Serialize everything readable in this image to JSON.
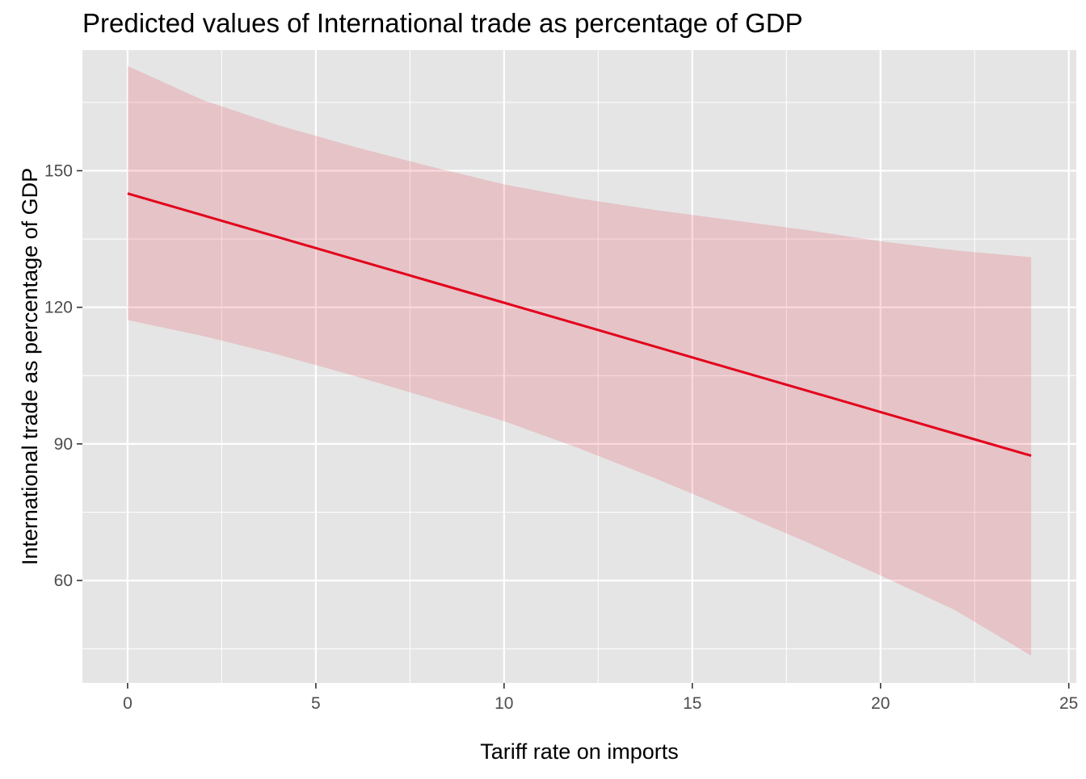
{
  "chart_data": {
    "type": "line",
    "title": "Predicted values of International trade as percentage of GDP",
    "xlabel": "Tariff rate on imports",
    "ylabel": "International trade as percentage of GDP",
    "xlim": [
      -1.2,
      25.2
    ],
    "ylim": [
      37.5,
      176.5
    ],
    "x_ticks": [
      0,
      5,
      10,
      15,
      20,
      25
    ],
    "x_tick_labels": [
      "0",
      "5",
      "10",
      "15",
      "20",
      "25"
    ],
    "y_ticks": [
      60,
      90,
      120,
      150
    ],
    "y_tick_labels": [
      "60",
      "90",
      "120",
      "150"
    ],
    "x_minor_ticks": [
      2.5,
      7.5,
      12.5,
      17.5,
      22.5
    ],
    "y_minor_ticks": [
      45,
      75,
      105,
      135,
      165
    ],
    "grid": true,
    "legend": "none",
    "colors": {
      "panel_background": "#e5e5e5",
      "grid": "#ffffff",
      "line": "#e3001b",
      "ribbon": "#e3001b",
      "tick_label": "#4d4d4d",
      "tick_mark": "#333333"
    },
    "series": [
      {
        "x": [
          0,
          2,
          4,
          6,
          8,
          10,
          12,
          14,
          16,
          18,
          20,
          22,
          24
        ],
        "y": [
          145.0,
          140.2,
          135.4,
          130.6,
          125.8,
          121.0,
          116.2,
          111.4,
          106.6,
          101.8,
          97.0,
          92.2,
          87.4
        ],
        "lower": [
          117.2,
          113.7,
          109.6,
          105.0,
          100.1,
          95.0,
          89.0,
          82.5,
          75.6,
          68.6,
          61.1,
          53.4,
          43.5
        ],
        "upper": [
          173.0,
          165.5,
          160.0,
          155.3,
          151.0,
          147.0,
          143.9,
          141.4,
          139.2,
          137.0,
          134.5,
          132.5,
          131.0
        ]
      }
    ]
  }
}
